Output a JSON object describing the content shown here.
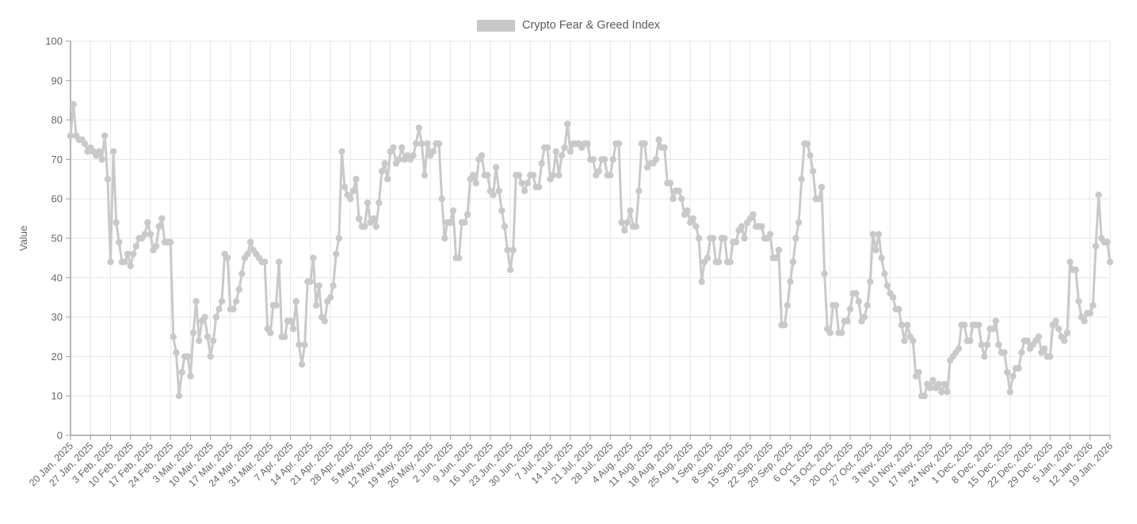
{
  "page": {
    "background": "#ffffff"
  },
  "legend": {
    "label": "Crypto Fear & Greed Index",
    "swatch_color": "#c8c8c8"
  },
  "colors": {
    "series": "#c9c9c9",
    "grid": "#e6e6e6",
    "axis": "#9e9e9e",
    "tick_text": "#666666",
    "legend_text": "#5a5a5a"
  },
  "chart_data": {
    "type": "line",
    "title": "Crypto Fear & Greed Index",
    "xlabel": "",
    "ylabel": "Value",
    "ylim": [
      0,
      100
    ],
    "y_ticks": [
      0,
      10,
      20,
      30,
      40,
      50,
      60,
      70,
      80,
      90,
      100
    ],
    "grid": true,
    "legend_position": "top-center",
    "marker": "circle",
    "x_frequency": "daily",
    "x_start_date": "20 Jan, 2025",
    "x_end_date": "19 Jan, 2026",
    "x_tick_labels": [
      "20 Jan, 2025",
      "27 Jan, 2025",
      "3 Feb, 2025",
      "10 Feb, 2025",
      "17 Feb, 2025",
      "24 Feb, 2025",
      "3 Mar, 2025",
      "10 Mar, 2025",
      "17 Mar, 2025",
      "24 Mar, 2025",
      "31 Mar, 2025",
      "7 Apr, 2025",
      "14 Apr, 2025",
      "21 Apr, 2025",
      "28 Apr, 2025",
      "5 May, 2025",
      "12 May, 2025",
      "19 May, 2025",
      "26 May, 2025",
      "2 Jun, 2025",
      "9 Jun, 2025",
      "16 Jun, 2025",
      "23 Jun, 2025",
      "30 Jun, 2025",
      "7 Jul, 2025",
      "14 Jul, 2025",
      "21 Jul, 2025",
      "28 Jul, 2025",
      "4 Aug, 2025",
      "11 Aug, 2025",
      "18 Aug, 2025",
      "25 Aug, 2025",
      "1 Sep, 2025",
      "8 Sep, 2025",
      "15 Sep, 2025",
      "22 Sep, 2025",
      "29 Sep, 2025",
      "6 Oct, 2025",
      "13 Oct, 2025",
      "20 Oct, 2025",
      "27 Oct, 2025",
      "3 Nov, 2025",
      "10 Nov, 2025",
      "17 Nov, 2025",
      "24 Nov, 2025",
      "1 Dec, 2025",
      "8 Dec, 2025",
      "15 Dec, 2025",
      "22 Dec, 2025",
      "29 Dec, 2025",
      "5 Jan, 2026",
      "12 Jan, 2026",
      "19 Jan, 2026"
    ],
    "values": [
      76,
      84,
      76,
      75,
      75,
      74,
      72,
      73,
      72,
      71,
      72,
      70,
      76,
      65,
      44,
      72,
      54,
      49,
      44,
      44,
      46,
      43,
      46,
      48,
      50,
      50,
      51,
      54,
      51,
      47,
      48,
      53,
      55,
      49,
      49,
      49,
      25,
      21,
      10,
      16,
      20,
      20,
      15,
      26,
      34,
      24,
      29,
      30,
      25,
      20,
      24,
      30,
      32,
      34,
      46,
      45,
      32,
      32,
      34,
      37,
      41,
      45,
      46,
      49,
      47,
      46,
      45,
      44,
      44,
      27,
      26,
      33,
      33,
      44,
      25,
      25,
      29,
      29,
      27,
      34,
      23,
      18,
      23,
      39,
      39,
      45,
      33,
      38,
      30,
      29,
      34,
      35,
      38,
      46,
      50,
      72,
      63,
      61,
      60,
      62,
      65,
      55,
      53,
      53,
      59,
      54,
      55,
      53,
      59,
      67,
      69,
      65,
      72,
      73,
      69,
      70,
      73,
      70,
      71,
      70,
      71,
      74,
      78,
      74,
      66,
      74,
      71,
      72,
      74,
      74,
      60,
      50,
      54,
      54,
      57,
      45,
      45,
      54,
      54,
      56,
      65,
      66,
      64,
      70,
      71,
      66,
      66,
      62,
      61,
      68,
      62,
      57,
      53,
      47,
      42,
      47,
      66,
      66,
      64,
      62,
      64,
      66,
      66,
      63,
      63,
      69,
      73,
      73,
      65,
      66,
      72,
      66,
      71,
      73,
      79,
      72,
      74,
      74,
      74,
      73,
      74,
      74,
      70,
      70,
      66,
      67,
      70,
      70,
      66,
      66,
      70,
      74,
      74,
      54,
      52,
      54,
      57,
      53,
      53,
      62,
      74,
      74,
      68,
      69,
      69,
      70,
      75,
      73,
      73,
      64,
      64,
      60,
      62,
      62,
      60,
      56,
      57,
      54,
      55,
      53,
      50,
      39,
      44,
      45,
      50,
      50,
      44,
      44,
      50,
      50,
      44,
      44,
      49,
      49,
      52,
      53,
      50,
      54,
      55,
      56,
      53,
      53,
      53,
      50,
      50,
      51,
      45,
      45,
      47,
      28,
      28,
      33,
      39,
      44,
      50,
      54,
      65,
      74,
      74,
      71,
      67,
      60,
      60,
      63,
      41,
      27,
      26,
      33,
      33,
      26,
      26,
      29,
      29,
      32,
      36,
      36,
      34,
      29,
      30,
      33,
      39,
      51,
      47,
      51,
      45,
      41,
      38,
      36,
      35,
      32,
      32,
      28,
      24,
      28,
      25,
      24,
      15,
      16,
      10,
      10,
      13,
      12,
      14,
      12,
      13,
      11,
      13,
      11,
      19,
      20,
      21,
      22,
      28,
      28,
      24,
      24,
      28,
      28,
      28,
      23,
      20,
      23,
      27,
      27,
      29,
      23,
      21,
      21,
      16,
      11,
      15,
      17,
      17,
      21,
      24,
      24,
      22,
      23,
      24,
      25,
      21,
      22,
      20,
      20,
      28,
      29,
      27,
      25,
      24,
      26,
      44,
      42,
      42,
      34,
      30,
      29,
      31,
      31,
      33,
      48,
      61,
      50,
      49,
      49,
      44
    ]
  }
}
